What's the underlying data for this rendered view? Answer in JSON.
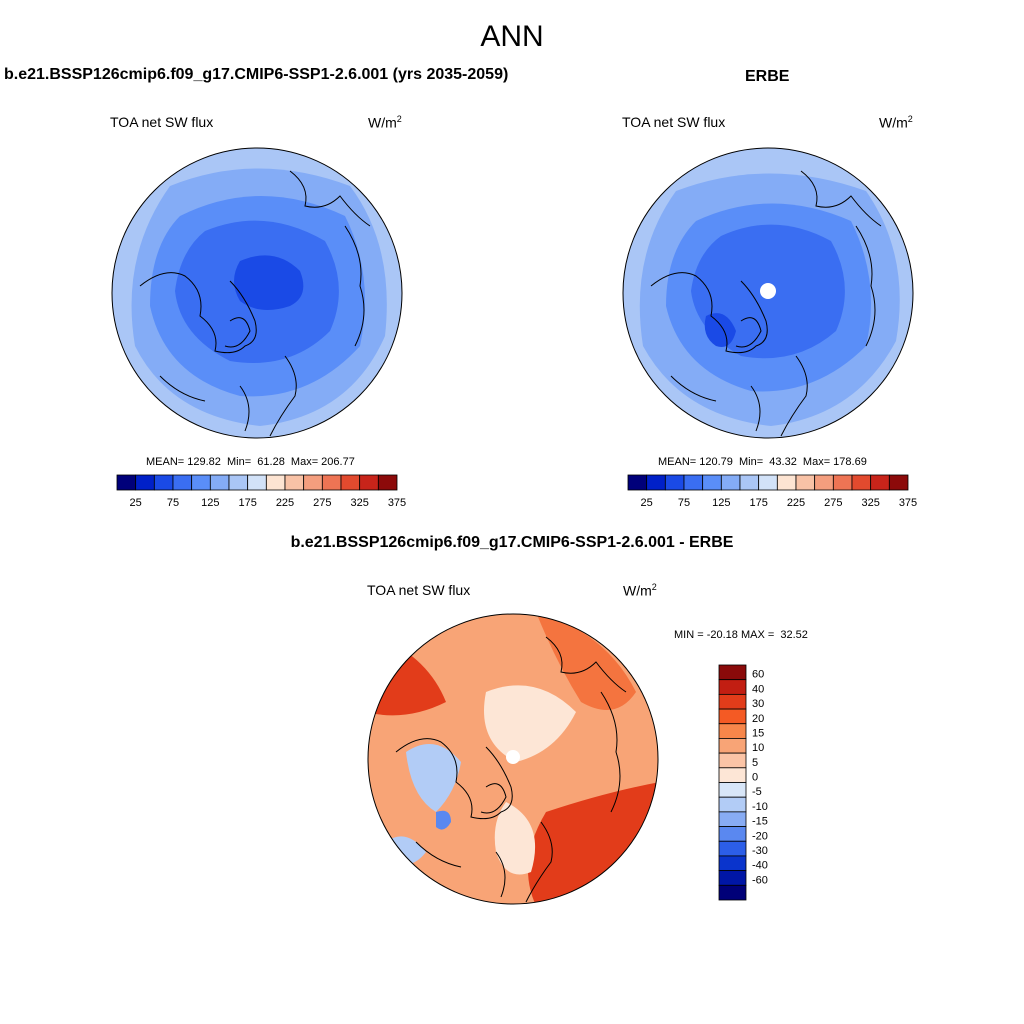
{
  "page": {
    "title": "ANN"
  },
  "panels": [
    {
      "id": "model",
      "case_title": "b.e21.BSSP126cmip6.f09_g17.CMIP6-SSP1-2.6.001 (yrs 2035-2059)",
      "variable": "TOA net SW flux",
      "units_base": "W/m",
      "units_exp": "2",
      "stats": "MEAN= 129.82  Min=  61.28  Max= 206.77"
    },
    {
      "id": "obs",
      "case_title": "ERBE",
      "variable": "TOA net SW flux",
      "units_base": "W/m",
      "units_exp": "2",
      "stats": "MEAN= 120.79  Min=  43.32  Max= 178.69"
    },
    {
      "id": "diff",
      "case_title": "b.e21.BSSP126cmip6.f09_g17.CMIP6-SSP1-2.6.001 - ERBE",
      "variable": "TOA net SW flux",
      "units_base": "W/m",
      "units_exp": "2",
      "stats": "MIN = -20.18 MAX =  32.52"
    }
  ],
  "colorbars": {
    "absolute": {
      "colors": [
        "#00007a",
        "#0020c8",
        "#1a4ae6",
        "#3a6ef2",
        "#5a8ef8",
        "#84acf6",
        "#aac6f6",
        "#d2e2f8",
        "#fde4d2",
        "#f8c2a6",
        "#f49e7e",
        "#ee7454",
        "#e24a2e",
        "#c8241a",
        "#8c0a0a"
      ],
      "tick_labels": [
        "25",
        "75",
        "125",
        "175",
        "225",
        "275",
        "325",
        "375"
      ]
    },
    "difference": {
      "colors": [
        "#8a0a0a",
        "#c21e12",
        "#e23c1a",
        "#f45a24",
        "#f7864a",
        "#f8a476",
        "#fbc4a6",
        "#fde6d6",
        "#d8e6f8",
        "#b2ccf6",
        "#88acf4",
        "#5a88f0",
        "#2c5ee8",
        "#0a34cc",
        "#0016a6",
        "#000078"
      ],
      "tick_labels": [
        "60",
        "40",
        "30",
        "20",
        "15",
        "10",
        "5",
        "0",
        "-5",
        "-10",
        "-15",
        "-20",
        "-30",
        "-40",
        "-60"
      ]
    }
  },
  "maps": {
    "model_colors": {
      "outer": "#aac6f6",
      "mid": "#84acf6",
      "inner1": "#5a8ef8",
      "inner2": "#3a6ef2",
      "core": "#1a4ae6"
    },
    "obs_colors": {
      "outer": "#aac6f6",
      "mid": "#84acf6",
      "inner1": "#5a8ef8",
      "inner2": "#3a6ef2",
      "core": "#1a4ae6",
      "pole_hole": "#ffffff"
    },
    "diff_colors": {
      "base": "#f8a476",
      "warm": "#f4743f",
      "hot": "#e23c1a",
      "light": "#fde6d6",
      "cool": "#b2ccf6",
      "blue": "#5a88f0"
    }
  }
}
